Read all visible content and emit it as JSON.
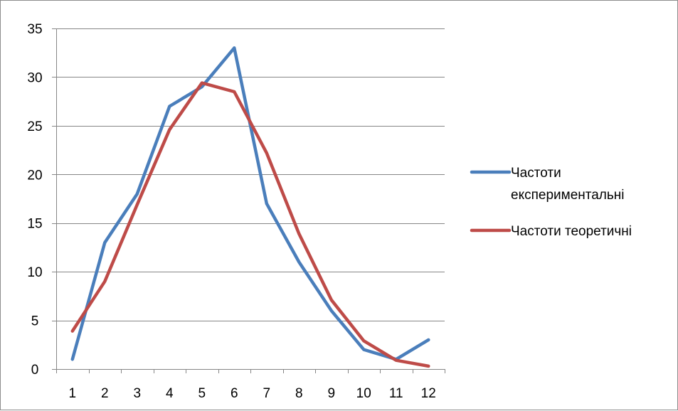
{
  "chart_data": {
    "type": "line",
    "title": "",
    "xlabel": "",
    "ylabel": "",
    "categories": [
      "1",
      "2",
      "3",
      "4",
      "5",
      "6",
      "7",
      "8",
      "9",
      "10",
      "11",
      "12"
    ],
    "ylim": [
      0,
      35
    ],
    "yticks": [
      0,
      5,
      10,
      15,
      20,
      25,
      30,
      35
    ],
    "grid": true,
    "legend_position": "right",
    "series": [
      {
        "name": "Частоти експериментальні",
        "name_lines": [
          "Частоти",
          "експериментальні"
        ],
        "color": "#4a7ebb",
        "values": [
          1,
          13,
          18,
          27,
          29,
          33,
          17,
          11,
          6,
          2,
          1,
          3
        ]
      },
      {
        "name": "Частоти теоретичні",
        "name_lines": [
          "Частоти теоретичні"
        ],
        "color": "#be4b48",
        "values": [
          3.9,
          9.0,
          16.9,
          24.6,
          29.4,
          28.5,
          22.2,
          13.9,
          7.1,
          2.9,
          0.9,
          0.3
        ]
      }
    ]
  }
}
